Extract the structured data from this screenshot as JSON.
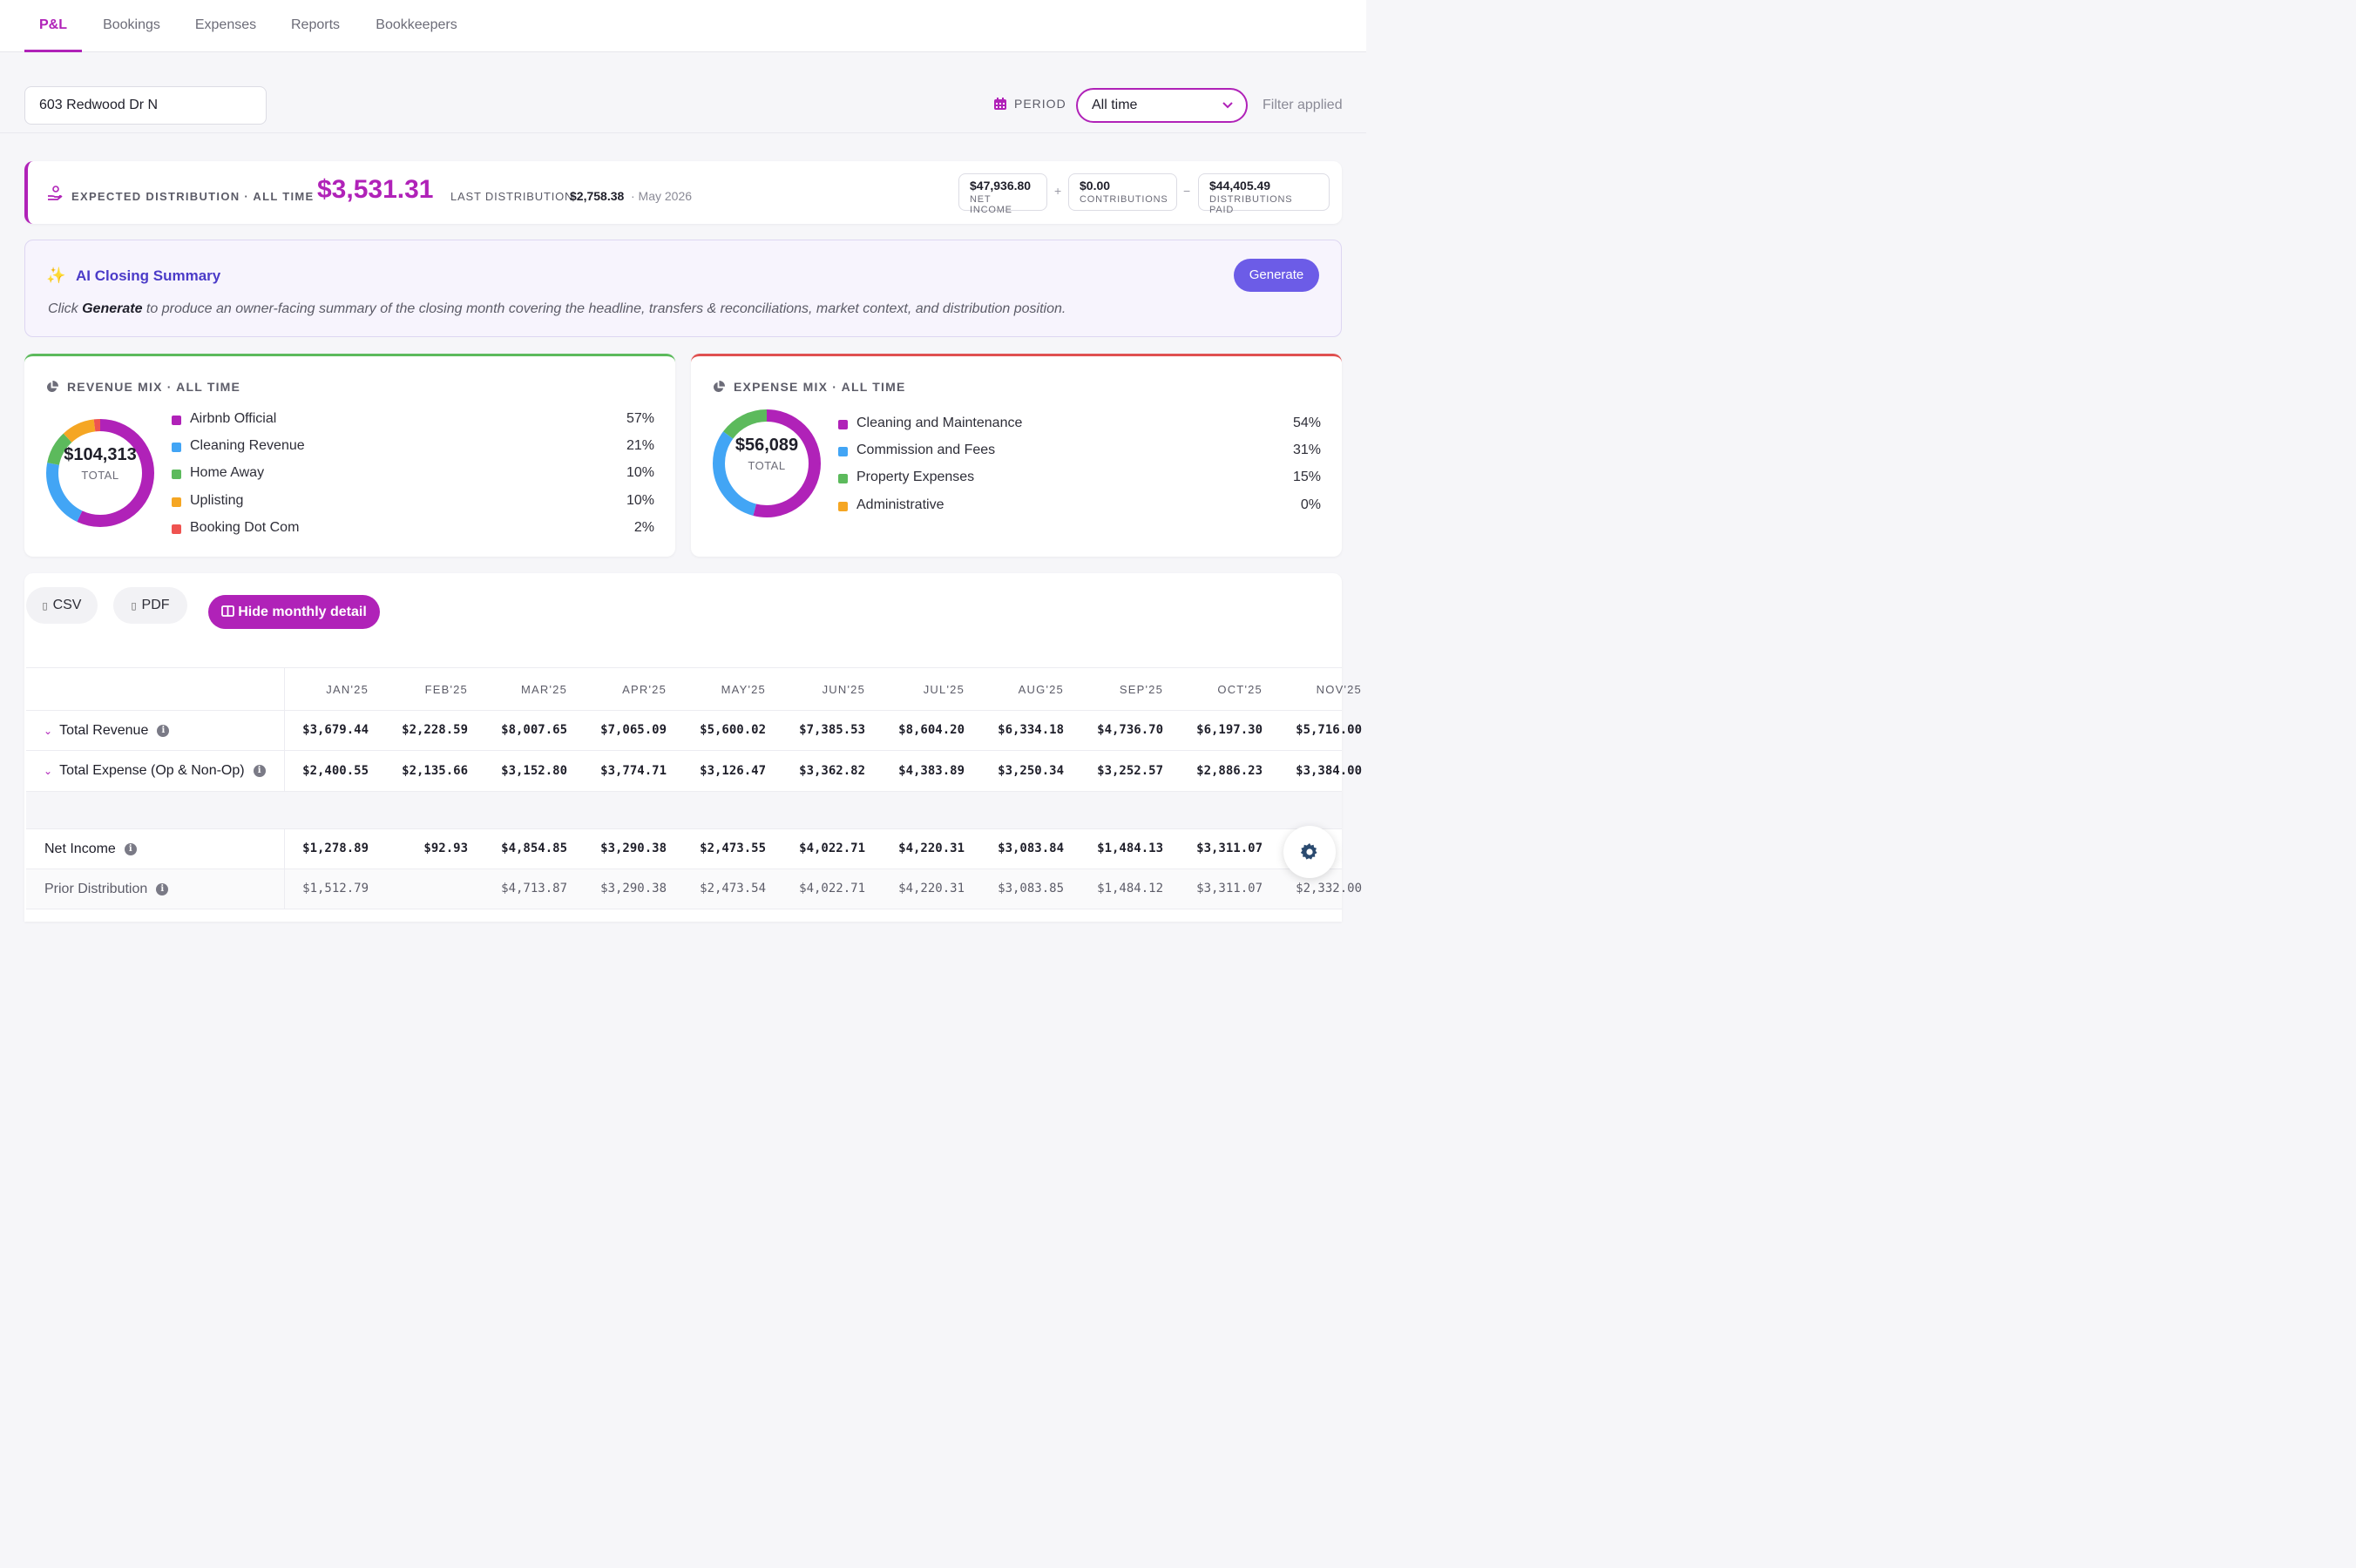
{
  "nav": {
    "tabs": [
      {
        "label": "P&L",
        "active": true
      },
      {
        "label": "Bookings"
      },
      {
        "label": "Expenses"
      },
      {
        "label": "Reports"
      },
      {
        "label": "Bookkeepers"
      }
    ]
  },
  "filters": {
    "property": "603 Redwood Dr N",
    "period_label": "PERIOD",
    "period_value": "All time",
    "filter_note": "Filter applied"
  },
  "distribution": {
    "label": "EXPECTED DISTRIBUTION · ALL TIME",
    "amount": "$3,531.31",
    "last_label": "LAST DISTRIBUTION",
    "last_amount": "$2,758.38",
    "last_date": "· May 2026",
    "net_income": {
      "value": "$47,936.80",
      "label": "NET INCOME"
    },
    "plus": "+",
    "contributions": {
      "value": "$0.00",
      "label": "CONTRIBUTIONS"
    },
    "minus": "−",
    "distributions_paid": {
      "value": "$44,405.49",
      "label": "DISTRIBUTIONS PAID"
    }
  },
  "ai_summary": {
    "title": "AI Closing Summary",
    "desc_before": "Click ",
    "desc_bold": "Generate",
    "desc_after": " to produce an owner-facing summary of the closing month covering the headline, transfers & reconciliations, market context, and distribution position.",
    "button": "Generate"
  },
  "revenue_mix": {
    "title": "REVENUE MIX · ALL TIME",
    "total": "$104,313",
    "total_label": "TOTAL",
    "items": [
      {
        "name": "Airbnb Official",
        "pct": "57%",
        "value": 57,
        "color": "#b022b8"
      },
      {
        "name": "Cleaning Revenue",
        "pct": "21%",
        "value": 21,
        "color": "#42a5f5"
      },
      {
        "name": "Home Away",
        "pct": "10%",
        "value": 10,
        "color": "#5cba5c"
      },
      {
        "name": "Uplisting",
        "pct": "10%",
        "value": 10,
        "color": "#f5a623"
      },
      {
        "name": "Booking Dot Com",
        "pct": "2%",
        "value": 2,
        "color": "#ef5350"
      }
    ]
  },
  "expense_mix": {
    "title": "EXPENSE MIX · ALL TIME",
    "total": "$56,089",
    "total_label": "TOTAL",
    "items": [
      {
        "name": "Cleaning and Maintenance",
        "pct": "54%",
        "value": 54,
        "color": "#b022b8"
      },
      {
        "name": "Commission and Fees",
        "pct": "31%",
        "value": 31,
        "color": "#42a5f5"
      },
      {
        "name": "Property Expenses",
        "pct": "15%",
        "value": 15,
        "color": "#5cba5c"
      },
      {
        "name": "Administrative",
        "pct": "0%",
        "value": 0,
        "color": "#f5a623"
      }
    ]
  },
  "toolbar": {
    "csv": "CSV",
    "pdf": "PDF",
    "hide_detail": "Hide monthly detail"
  },
  "table": {
    "months": [
      "JAN'25",
      "FEB'25",
      "MAR'25",
      "APR'25",
      "MAY'25",
      "JUN'25",
      "JUL'25",
      "AUG'25",
      "SEP'25",
      "OCT'25",
      "NOV'25"
    ],
    "rows": [
      {
        "label": "Total Revenue",
        "expandable": true,
        "info": true,
        "bold": true,
        "values": [
          "$3,679.44",
          "$2,228.59",
          "$8,007.65",
          "$7,065.09",
          "$5,600.02",
          "$7,385.53",
          "$8,604.20",
          "$6,334.18",
          "$4,736.70",
          "$6,197.30",
          "$5,716.00"
        ]
      },
      {
        "label": "Total Expense (Op & Non-Op)",
        "expandable": true,
        "info": true,
        "bold": true,
        "values": [
          "$2,400.55",
          "$2,135.66",
          "$3,152.80",
          "$3,774.71",
          "$3,126.47",
          "$3,362.82",
          "$4,383.89",
          "$3,250.34",
          "$3,252.57",
          "$2,886.23",
          "$3,384.00"
        ]
      },
      {
        "label": "Net Income",
        "expandable": false,
        "info": true,
        "bold": true,
        "values": [
          "$1,278.89",
          "$92.93",
          "$4,854.85",
          "$3,290.38",
          "$2,473.55",
          "$4,022.71",
          "$4,220.31",
          "$3,083.84",
          "$1,484.13",
          "$3,311.07",
          ""
        ]
      },
      {
        "label": "Prior Distribution",
        "expandable": false,
        "info": true,
        "bold": false,
        "values": [
          "$1,512.79",
          "",
          "$4,713.87",
          "$3,290.38",
          "$2,473.54",
          "$4,022.71",
          "$4,220.31",
          "$3,083.85",
          "$1,484.12",
          "$3,311.07",
          "$2,332.00"
        ]
      }
    ]
  }
}
